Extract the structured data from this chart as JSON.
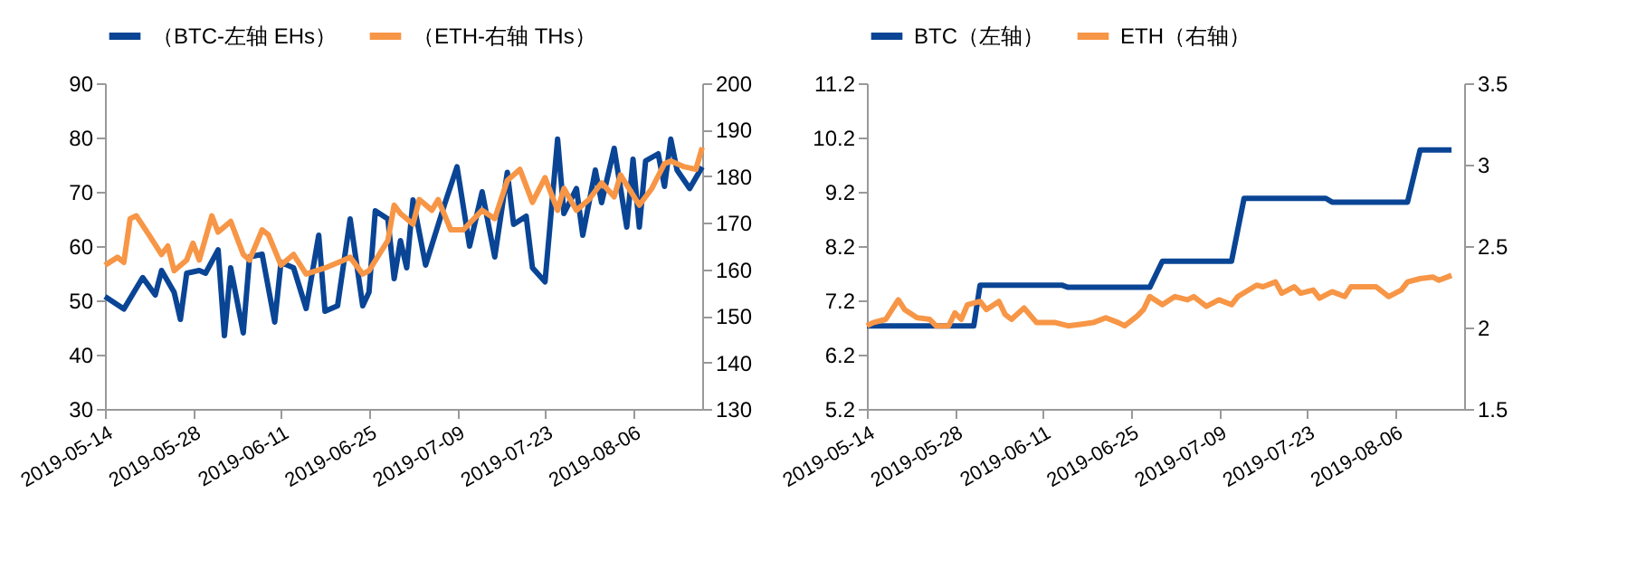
{
  "chart_data": [
    {
      "type": "line",
      "legend": "top",
      "xlim": [
        "2019-05-14",
        "2019-08-17"
      ],
      "xticks": [
        {
          "value": "2019-05-14",
          "label": "2019-05-14"
        },
        {
          "value": "2019-05-28",
          "label": "2019-05-28"
        },
        {
          "value": "2019-06-11",
          "label": "2019-06-11"
        },
        {
          "value": "2019-06-25",
          "label": "2019-06-25"
        },
        {
          "value": "2019-07-09",
          "label": "2019-07-09"
        },
        {
          "value": "2019-07-23",
          "label": "2019-07-23"
        },
        {
          "value": "2019-08-06",
          "label": "2019-08-06"
        }
      ],
      "ylim": [
        30,
        90
      ],
      "yticks": [
        30,
        40,
        50,
        60,
        70,
        80,
        90
      ],
      "y2lim": [
        130,
        200
      ],
      "y2ticks": [
        130,
        140,
        150,
        160,
        170,
        180,
        190,
        200
      ],
      "series": [
        {
          "name": "（BTC-左轴 EHs）",
          "color": "#0a4595",
          "x": [
            "2019-05-14",
            "2019-05-17",
            "2019-05-20",
            "2019-05-22",
            "2019-05-23",
            "2019-05-25",
            "2019-05-26",
            "2019-05-27",
            "2019-05-29",
            "2019-05-30",
            "2019-06-01",
            "2019-06-02",
            "2019-06-03",
            "2019-06-05",
            "2019-06-06",
            "2019-06-08",
            "2019-06-10",
            "2019-06-11",
            "2019-06-13",
            "2019-06-15",
            "2019-06-17",
            "2019-06-18",
            "2019-06-20",
            "2019-06-22",
            "2019-06-24",
            "2019-06-25",
            "2019-06-26",
            "2019-06-28",
            "2019-06-29",
            "2019-06-30",
            "2019-07-01",
            "2019-07-02",
            "2019-07-04",
            "2019-07-07",
            "2019-07-09",
            "2019-07-11",
            "2019-07-13",
            "2019-07-15",
            "2019-07-17",
            "2019-07-18",
            "2019-07-20",
            "2019-07-21",
            "2019-07-23",
            "2019-07-25",
            "2019-07-26",
            "2019-07-28",
            "2019-07-29",
            "2019-07-31",
            "2019-08-01",
            "2019-08-03",
            "2019-08-05",
            "2019-08-06",
            "2019-08-07",
            "2019-08-08",
            "2019-08-10",
            "2019-08-11",
            "2019-08-12",
            "2019-08-13",
            "2019-08-15",
            "2019-08-17"
          ],
          "values": [
            50.7,
            48.4,
            54.2,
            51,
            55.5,
            51.5,
            46.5,
            55,
            55.5,
            55,
            59.3,
            43.5,
            56,
            44,
            58,
            58.5,
            46,
            57,
            56,
            48.5,
            62,
            48,
            49,
            65,
            49,
            51.5,
            66.5,
            65,
            54,
            61,
            56,
            68.5,
            56.5,
            67.6,
            74.6,
            60,
            70,
            58,
            73.6,
            64,
            65.5,
            56,
            53.4,
            79.7,
            66,
            70.6,
            62,
            74,
            68,
            78,
            63.5,
            76,
            63.5,
            75.7,
            77,
            71,
            79.7,
            74,
            70.6,
            74.6
          ]
        },
        {
          "name": "（ETH-右轴 THs）",
          "color": "#f79646",
          "axis": "y2",
          "x": [
            "2019-05-14",
            "2019-05-16",
            "2019-05-17",
            "2019-05-18",
            "2019-05-19",
            "2019-05-21",
            "2019-05-23",
            "2019-05-24",
            "2019-05-25",
            "2019-05-27",
            "2019-05-28",
            "2019-05-29",
            "2019-05-31",
            "2019-06-01",
            "2019-06-03",
            "2019-06-05",
            "2019-06-06",
            "2019-06-08",
            "2019-06-09",
            "2019-06-11",
            "2019-06-13",
            "2019-06-15",
            "2019-06-18",
            "2019-06-21",
            "2019-06-22",
            "2019-06-24",
            "2019-06-25",
            "2019-06-28",
            "2019-06-29",
            "2019-06-30",
            "2019-07-02",
            "2019-07-03",
            "2019-07-05",
            "2019-07-06",
            "2019-07-08",
            "2019-07-10",
            "2019-07-13",
            "2019-07-15",
            "2019-07-17",
            "2019-07-19",
            "2019-07-21",
            "2019-07-23",
            "2019-07-25",
            "2019-07-26",
            "2019-07-28",
            "2019-07-30",
            "2019-08-01",
            "2019-08-03",
            "2019-08-04",
            "2019-08-07",
            "2019-08-09",
            "2019-08-11",
            "2019-08-12",
            "2019-08-14",
            "2019-08-16",
            "2019-08-17"
          ],
          "values": [
            160.9,
            162.6,
            161.5,
            170.9,
            171.5,
            167.4,
            163.2,
            165,
            159.7,
            162,
            165.6,
            162,
            171.5,
            168,
            170.3,
            163.2,
            162,
            168.5,
            167.4,
            160.9,
            163.2,
            159,
            160.3,
            162,
            162.6,
            159,
            159.7,
            166.2,
            173.8,
            172,
            169.7,
            175,
            172.7,
            175,
            168.5,
            168.5,
            172.7,
            170.9,
            179.1,
            181.5,
            174.4,
            179.7,
            172.7,
            177.4,
            172.7,
            175,
            178.6,
            175.6,
            180.3,
            173.8,
            177.4,
            182.7,
            183.3,
            182.1,
            181.5,
            186.2
          ]
        }
      ]
    },
    {
      "type": "line",
      "legend": "top",
      "xlim": [
        "2019-05-14",
        "2019-08-17"
      ],
      "xticks": [
        {
          "value": "2019-05-14",
          "label": "2019-05-14"
        },
        {
          "value": "2019-05-28",
          "label": "2019-05-28"
        },
        {
          "value": "2019-06-11",
          "label": "2019-06-11"
        },
        {
          "value": "2019-06-25",
          "label": "2019-06-25"
        },
        {
          "value": "2019-07-09",
          "label": "2019-07-09"
        },
        {
          "value": "2019-07-23",
          "label": "2019-07-23"
        },
        {
          "value": "2019-08-06",
          "label": "2019-08-06"
        }
      ],
      "ylim": [
        5.2,
        11.2
      ],
      "yticks": [
        5.2,
        6.2,
        7.2,
        8.2,
        9.2,
        10.2,
        11.2
      ],
      "y2lim": [
        1.5,
        3.5
      ],
      "y2ticks": [
        1.5,
        2,
        2.5,
        3,
        3.5
      ],
      "series": [
        {
          "name": "BTC（左轴）",
          "color": "#0a4595",
          "x": [
            "2019-05-14",
            "2019-05-31",
            "2019-06-01",
            "2019-06-14",
            "2019-06-15",
            "2019-06-28",
            "2019-06-30",
            "2019-07-11",
            "2019-07-13",
            "2019-07-26",
            "2019-07-27",
            "2019-08-08",
            "2019-08-10",
            "2019-08-15"
          ],
          "values": [
            6.73,
            6.73,
            7.48,
            7.48,
            7.44,
            7.44,
            7.92,
            7.92,
            9.08,
            9.08,
            9.01,
            9.01,
            9.97,
            9.97
          ]
        },
        {
          "name": "ETH（右轴）",
          "color": "#f79646",
          "axis": "y2",
          "x": [
            "2019-05-14",
            "2019-05-15",
            "2019-05-17",
            "2019-05-19",
            "2019-05-20",
            "2019-05-22",
            "2019-05-24",
            "2019-05-25",
            "2019-05-27",
            "2019-05-28",
            "2019-05-29",
            "2019-05-30",
            "2019-06-01",
            "2019-06-02",
            "2019-06-04",
            "2019-06-05",
            "2019-06-06",
            "2019-06-08",
            "2019-06-10",
            "2019-06-13",
            "2019-06-15",
            "2019-06-17",
            "2019-06-19",
            "2019-06-21",
            "2019-06-23",
            "2019-06-24",
            "2019-06-26",
            "2019-06-27",
            "2019-06-28",
            "2019-06-30",
            "2019-07-02",
            "2019-07-04",
            "2019-07-05",
            "2019-07-07",
            "2019-07-09",
            "2019-07-11",
            "2019-07-12",
            "2019-07-15",
            "2019-07-16",
            "2019-07-18",
            "2019-07-19",
            "2019-07-21",
            "2019-07-22",
            "2019-07-24",
            "2019-07-25",
            "2019-07-27",
            "2019-07-29",
            "2019-07-30",
            "2019-08-01",
            "2019-08-03",
            "2019-08-05",
            "2019-08-07",
            "2019-08-08",
            "2019-08-10",
            "2019-08-12",
            "2019-08-13",
            "2019-08-15"
          ],
          "values": [
            2.01,
            2.03,
            2.05,
            2.17,
            2.11,
            2.06,
            2.05,
            2.01,
            2.01,
            2.09,
            2.05,
            2.14,
            2.16,
            2.11,
            2.16,
            2.08,
            2.05,
            2.12,
            2.03,
            2.03,
            2.01,
            2.02,
            2.03,
            2.06,
            2.03,
            2.01,
            2.07,
            2.11,
            2.19,
            2.14,
            2.19,
            2.17,
            2.19,
            2.13,
            2.17,
            2.14,
            2.19,
            2.26,
            2.25,
            2.28,
            2.21,
            2.25,
            2.21,
            2.23,
            2.18,
            2.22,
            2.19,
            2.25,
            2.25,
            2.25,
            2.19,
            2.23,
            2.28,
            2.3,
            2.31,
            2.29,
            2.32
          ]
        }
      ]
    }
  ]
}
